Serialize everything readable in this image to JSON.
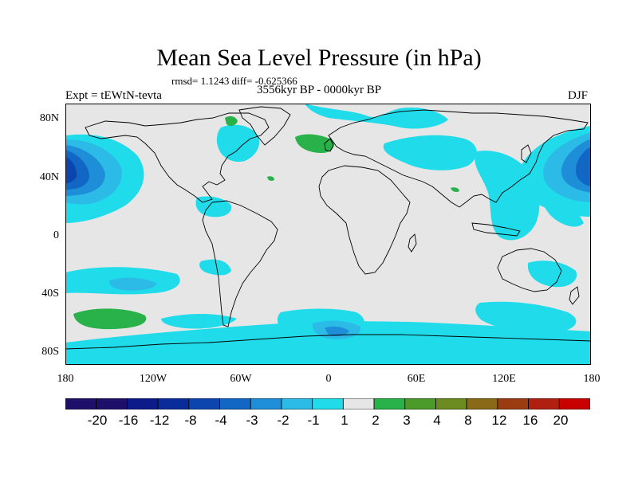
{
  "title": "Mean Sea Level Pressure (in hPa)",
  "stats": "rmsd= 1.1243 diff= -0.625366",
  "period": "3556kyr BP - 0000kyr BP",
  "experiment": "Expt = tEWtN-tevta",
  "season": "DJF",
  "lat_labels": [
    "80N",
    "40N",
    "0",
    "40S",
    "80S"
  ],
  "lon_labels": [
    "180",
    "120W",
    "60W",
    "0",
    "60E",
    "120E",
    "180"
  ],
  "colorbar": {
    "labels": [
      "-20",
      "-16",
      "-12",
      "-8",
      "-4",
      "-3",
      "-2",
      "-1",
      "1",
      "2",
      "3",
      "4",
      "8",
      "12",
      "16",
      "20"
    ],
    "colors": [
      "#1e0f6b",
      "#0c1a8a",
      "#0a2c9a",
      "#0b45ad",
      "#1266c4",
      "#1e8ed8",
      "#2bbbe6",
      "#20dcea",
      "#e6e6e6",
      "#2ab24a",
      "#4c9a2a",
      "#6b8a20",
      "#8a6a18",
      "#9a3c10",
      "#b02010",
      "#c80000"
    ],
    "units": "hPa"
  },
  "colors": {
    "background_field": "#e6e6e6",
    "neg_weak": "#20dcea",
    "neg_mid": "#2bbbe6",
    "neg_strong": "#1e8ed8",
    "neg_stronger": "#1266c4",
    "neg_strongest": "#0b45ad",
    "pos_weak": "#2ab24a"
  }
}
